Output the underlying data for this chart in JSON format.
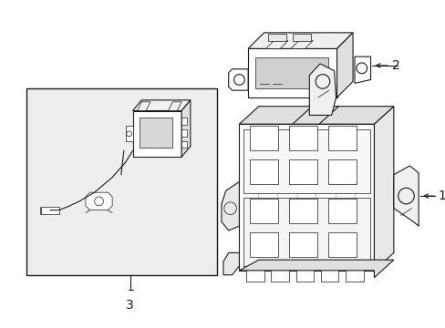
{
  "bg_color": "#ffffff",
  "line_color": "#1a1a1a",
  "box_bg": "#efefef",
  "label_1": "1",
  "label_2": "2",
  "label_3": "3",
  "figsize": [
    4.89,
    3.6
  ],
  "dpi": 100
}
